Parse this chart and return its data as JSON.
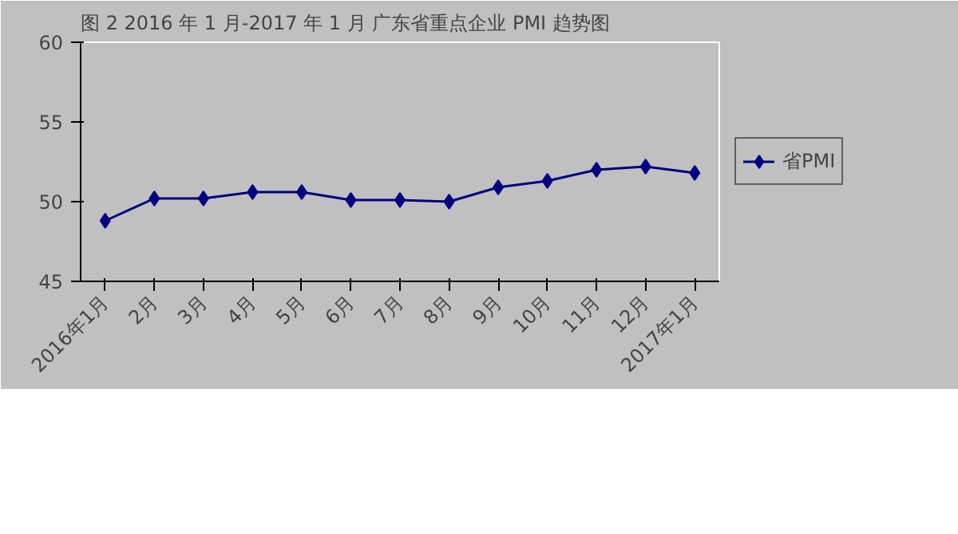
{
  "chart_data": {
    "type": "line",
    "title": "图 2   2016 年 1 月-2017 年 1 月   广东省重点企业 PMI 趋势图",
    "categories": [
      "2016年1月",
      "2月",
      "3月",
      "4月",
      "5月",
      "6月",
      "7月",
      "8月",
      "9月",
      "10月",
      "11月",
      "12月",
      "2017年1月"
    ],
    "series": [
      {
        "name": "省PMI",
        "color": "#000080",
        "values": [
          48.8,
          50.2,
          50.2,
          50.6,
          50.6,
          50.1,
          50.1,
          50.0,
          50.9,
          51.3,
          52.0,
          52.2,
          51.8
        ]
      }
    ],
    "ylim": [
      45,
      60
    ],
    "yticks": [
      45,
      50,
      55,
      60
    ],
    "grid": false,
    "legend": "right",
    "marker": "diamond",
    "line_style": "solid"
  }
}
